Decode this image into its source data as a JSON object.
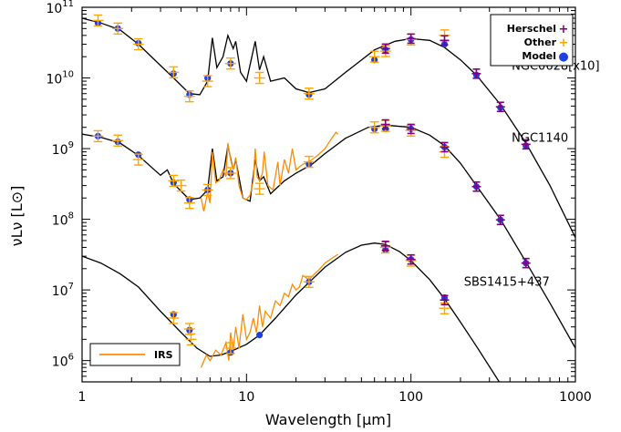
{
  "chart_data": {
    "type": "scatter",
    "title": "",
    "xlabel": "Wavelength [μm]",
    "ylabel": "νLν [L⊙]",
    "x_scale": "log",
    "y_scale": "log",
    "xlim": [
      1,
      1000
    ],
    "ylim": [
      500000,
      100000000000
    ],
    "x_ticks": [
      {
        "value": 1,
        "label": "1"
      },
      {
        "value": 10,
        "label": "10"
      },
      {
        "value": 100,
        "label": "100"
      },
      {
        "value": 1000,
        "label": "1000"
      }
    ],
    "y_ticks": [
      {
        "value": 1000000,
        "base": "10",
        "exp": "6"
      },
      {
        "value": 10000000,
        "base": "10",
        "exp": "7"
      },
      {
        "value": 100000000,
        "base": "10",
        "exp": "8"
      },
      {
        "value": 1000000000,
        "base": "10",
        "exp": "9"
      },
      {
        "value": 10000000000,
        "base": "10",
        "exp": "10"
      },
      {
        "value": 100000000000,
        "base": "10",
        "exp": "11"
      }
    ],
    "legend": {
      "placement": "top-right",
      "entries": [
        {
          "label": "Herschel",
          "marker": "+",
          "color": "#800080"
        },
        {
          "label": "Other",
          "marker": "+",
          "color": "#ffa500"
        },
        {
          "label": "Model",
          "marker": "●",
          "color": "#1f3fe0"
        }
      ]
    },
    "legend_irs": {
      "placement": "bottom-left",
      "label": "IRS",
      "color": "#ff8c00"
    },
    "galaxies": [
      {
        "name": "NGC0628[x10]",
        "label_x": 410,
        "label_y": 13000000000,
        "model_curve": [
          [
            1.0,
            70000000000
          ],
          [
            1.3,
            60000000000
          ],
          [
            1.7,
            48000000000
          ],
          [
            2.2,
            30000000000
          ],
          [
            3.0,
            15000000000
          ],
          [
            3.6,
            10000000000
          ],
          [
            4.5,
            6000000000
          ],
          [
            5.2,
            5800000000
          ],
          [
            5.8,
            9000000000
          ],
          [
            6.2,
            37000000000
          ],
          [
            6.6,
            14000000000
          ],
          [
            7.2,
            20000000000
          ],
          [
            7.7,
            40000000000
          ],
          [
            8.3,
            26000000000
          ],
          [
            8.6,
            33000000000
          ],
          [
            9.2,
            12000000000
          ],
          [
            10.0,
            9000000000
          ],
          [
            11.3,
            33000000000
          ],
          [
            12.0,
            13000000000
          ],
          [
            12.7,
            20000000000
          ],
          [
            14.0,
            9000000000
          ],
          [
            17.0,
            10000000000
          ],
          [
            20.0,
            7000000000
          ],
          [
            24.0,
            6200000000
          ],
          [
            30.0,
            7000000000
          ],
          [
            40.0,
            12000000000
          ],
          [
            60.0,
            25000000000
          ],
          [
            80.0,
            33000000000
          ],
          [
            100.0,
            36000000000
          ],
          [
            130.0,
            34000000000
          ],
          [
            160.0,
            27000000000
          ],
          [
            200.0,
            18000000000
          ],
          [
            250.0,
            11000000000
          ],
          [
            350.0,
            4200000000
          ],
          [
            500.0,
            1200000000
          ],
          [
            700.0,
            300000000
          ],
          [
            1000.0,
            55000000
          ]
        ],
        "model_points": [
          [
            1.25,
            60000000000
          ],
          [
            1.65,
            50000000000
          ],
          [
            2.2,
            31000000000
          ],
          [
            3.6,
            11500000000
          ],
          [
            4.5,
            5800000000
          ],
          [
            5.8,
            10000000000
          ],
          [
            8.0,
            16000000000
          ],
          [
            24.0,
            5800000000
          ],
          [
            60.0,
            18000000000
          ],
          [
            70.0,
            25000000000
          ],
          [
            100.0,
            35000000000
          ],
          [
            160.0,
            30000000000
          ],
          [
            250.0,
            11000000000
          ],
          [
            350.0,
            3800000000
          ],
          [
            500.0,
            1100000000
          ]
        ],
        "other_points": [
          [
            1.25,
            65000000000
          ],
          [
            1.65,
            50000000000
          ],
          [
            2.2,
            30000000000
          ],
          [
            3.6,
            12000000000
          ],
          [
            4.5,
            5500000000
          ],
          [
            5.8,
            9000000000
          ],
          [
            8.0,
            16000000000
          ],
          [
            12.0,
            10000000000
          ],
          [
            24.0,
            6000000000
          ],
          [
            60.0,
            20000000000
          ],
          [
            70.0,
            24000000000
          ],
          [
            100.0,
            35000000000
          ],
          [
            160.0,
            40000000000
          ]
        ],
        "herschel_points": [
          [
            70.0,
            26000000000
          ],
          [
            100.0,
            36000000000
          ],
          [
            160.0,
            34000000000
          ],
          [
            250.0,
            11500000000
          ],
          [
            350.0,
            3900000000
          ],
          [
            500.0,
            1150000000
          ]
        ]
      },
      {
        "name": "NGC1140",
        "label_x": 410,
        "label_y": 1250000000,
        "model_curve": [
          [
            1.0,
            1600000000
          ],
          [
            1.3,
            1450000000
          ],
          [
            1.7,
            1200000000
          ],
          [
            2.2,
            800000000
          ],
          [
            3.0,
            420000000
          ],
          [
            3.3,
            500000000
          ],
          [
            3.6,
            320000000
          ],
          [
            4.5,
            190000000
          ],
          [
            5.2,
            200000000
          ],
          [
            5.8,
            260000000
          ],
          [
            6.2,
            1000000000
          ],
          [
            6.6,
            350000000
          ],
          [
            7.2,
            400000000
          ],
          [
            7.7,
            1100000000
          ],
          [
            8.3,
            500000000
          ],
          [
            8.6,
            700000000
          ],
          [
            9.5,
            200000000
          ],
          [
            10.5,
            180000000
          ],
          [
            11.3,
            700000000
          ],
          [
            12.0,
            350000000
          ],
          [
            12.7,
            400000000
          ],
          [
            14.0,
            230000000
          ],
          [
            17.0,
            350000000
          ],
          [
            20.0,
            450000000
          ],
          [
            25.0,
            600000000
          ],
          [
            30.0,
            850000000
          ],
          [
            40.0,
            1400000000
          ],
          [
            55.0,
            2000000000
          ],
          [
            70.0,
            2150000000
          ],
          [
            100.0,
            2000000000
          ],
          [
            130.0,
            1550000000
          ],
          [
            160.0,
            1100000000
          ],
          [
            200.0,
            620000000
          ],
          [
            250.0,
            300000000
          ],
          [
            350.0,
            100000000
          ],
          [
            500.0,
            25000000
          ],
          [
            700.0,
            6500000
          ],
          [
            1000.0,
            1500000
          ]
        ],
        "irs_curve": [
          [
            5.3,
            200000000
          ],
          [
            5.5,
            130000000
          ],
          [
            5.8,
            240000000
          ],
          [
            6.0,
            170000000
          ],
          [
            6.2,
            900000000
          ],
          [
            6.5,
            330000000
          ],
          [
            6.8,
            350000000
          ],
          [
            7.2,
            500000000
          ],
          [
            7.5,
            400000000
          ],
          [
            7.7,
            1200000000
          ],
          [
            8.0,
            700000000
          ],
          [
            8.3,
            500000000
          ],
          [
            8.6,
            750000000
          ],
          [
            9.0,
            300000000
          ],
          [
            9.5,
            200000000
          ],
          [
            10.0,
            190000000
          ],
          [
            10.5,
            220000000
          ],
          [
            11.0,
            350000000
          ],
          [
            11.3,
            1000000000
          ],
          [
            11.6,
            400000000
          ],
          [
            12.0,
            350000000
          ],
          [
            12.5,
            450000000
          ],
          [
            12.8,
            900000000
          ],
          [
            13.5,
            300000000
          ],
          [
            14.5,
            260000000
          ],
          [
            15.5,
            650000000
          ],
          [
            16.0,
            300000000
          ],
          [
            17.0,
            700000000
          ],
          [
            18.0,
            450000000
          ],
          [
            19.0,
            1000000000
          ],
          [
            20.0,
            500000000
          ],
          [
            22.0,
            600000000
          ],
          [
            24.0,
            650000000
          ],
          [
            27.0,
            800000000
          ],
          [
            30.0,
            1000000000
          ],
          [
            33.0,
            1400000000
          ],
          [
            35.0,
            1700000000
          ],
          [
            36.0,
            1600000000
          ]
        ],
        "model_points": [
          [
            1.25,
            1500000000
          ],
          [
            1.65,
            1250000000
          ],
          [
            2.2,
            820000000
          ],
          [
            3.6,
            330000000
          ],
          [
            4.5,
            190000000
          ],
          [
            5.8,
            260000000
          ],
          [
            8.0,
            450000000
          ],
          [
            24.0,
            600000000
          ],
          [
            60.0,
            1900000000
          ],
          [
            70.0,
            1900000000
          ],
          [
            100.0,
            1900000000
          ],
          [
            160.0,
            1050000000
          ],
          [
            250.0,
            290000000
          ],
          [
            350.0,
            98000000
          ],
          [
            500.0,
            24000000
          ]
        ],
        "other_points": [
          [
            1.25,
            1500000000
          ],
          [
            1.65,
            1300000000
          ],
          [
            2.2,
            700000000
          ],
          [
            3.6,
            350000000
          ],
          [
            4.0,
            300000000
          ],
          [
            4.5,
            170000000
          ],
          [
            5.8,
            260000000
          ],
          [
            8.0,
            450000000
          ],
          [
            12.0,
            270000000
          ],
          [
            24.0,
            650000000
          ],
          [
            60.0,
            2000000000
          ],
          [
            70.0,
            2100000000
          ],
          [
            100.0,
            1800000000
          ],
          [
            160.0,
            900000000
          ]
        ],
        "herschel_points": [
          [
            70.0,
            2200000000
          ],
          [
            100.0,
            1900000000
          ],
          [
            160.0,
            1050000000
          ],
          [
            250.0,
            290000000
          ],
          [
            350.0,
            98000000
          ],
          [
            500.0,
            24000000
          ]
        ]
      },
      {
        "name": "SBS1415+437",
        "label_x": 210,
        "label_y": 11500000,
        "model_curve": [
          [
            1.0,
            30000000
          ],
          [
            1.3,
            24000000
          ],
          [
            1.7,
            17000000
          ],
          [
            2.2,
            11000000
          ],
          [
            3.0,
            5000000
          ],
          [
            4.0,
            2500000
          ],
          [
            5.0,
            1500000
          ],
          [
            6.0,
            1150000
          ],
          [
            7.0,
            1200000
          ],
          [
            8.0,
            1350000
          ],
          [
            10.0,
            1700000
          ],
          [
            12.0,
            2300000
          ],
          [
            15.0,
            4000000
          ],
          [
            20.0,
            8500000
          ],
          [
            25.0,
            14000000
          ],
          [
            30.0,
            21000000
          ],
          [
            40.0,
            34000000
          ],
          [
            50.0,
            43000000
          ],
          [
            60.0,
            46000000
          ],
          [
            70.0,
            44000000
          ],
          [
            85.0,
            35000000
          ],
          [
            100.0,
            26000000
          ],
          [
            130.0,
            14000000
          ],
          [
            160.0,
            7500000
          ],
          [
            200.0,
            3500000
          ],
          [
            250.0,
            1600000
          ],
          [
            350.0,
            470000
          ]
        ],
        "irs_curve": [
          [
            5.3,
            800000
          ],
          [
            5.7,
            1200000
          ],
          [
            6.0,
            1000000
          ],
          [
            6.5,
            1400000
          ],
          [
            7.0,
            1200000
          ],
          [
            7.5,
            1800000
          ],
          [
            7.8,
            1000000
          ],
          [
            8.0,
            2500000
          ],
          [
            8.3,
            1400000
          ],
          [
            8.6,
            3000000
          ],
          [
            9.0,
            1500000
          ],
          [
            9.5,
            4500000
          ],
          [
            10.0,
            2000000
          ],
          [
            10.5,
            2500000
          ],
          [
            11.0,
            4000000
          ],
          [
            11.5,
            2500000
          ],
          [
            12.0,
            6000000
          ],
          [
            12.5,
            3000000
          ],
          [
            13.0,
            5000000
          ],
          [
            14.0,
            4000000
          ],
          [
            15.0,
            7000000
          ],
          [
            16.0,
            6000000
          ],
          [
            17.0,
            9000000
          ],
          [
            18.0,
            8000000
          ],
          [
            19.0,
            12000000
          ],
          [
            20.0,
            10000000
          ],
          [
            21.0,
            11000000
          ],
          [
            22.0,
            16000000
          ],
          [
            24.0,
            14000000
          ],
          [
            26.0,
            17000000
          ],
          [
            28.0,
            20000000
          ],
          [
            30.0,
            24000000
          ],
          [
            33.0,
            28000000
          ],
          [
            36.0,
            32000000
          ]
        ],
        "model_points": [
          [
            3.6,
            4500000
          ],
          [
            4.5,
            2700000
          ],
          [
            8.0,
            1300000
          ],
          [
            12.0,
            2300000
          ],
          [
            24.0,
            13000000
          ],
          [
            70.0,
            37000000
          ],
          [
            100.0,
            27000000
          ],
          [
            160.0,
            7800000
          ]
        ],
        "other_points": [
          [
            3.6,
            4000000
          ],
          [
            4.5,
            2800000
          ],
          [
            4.6,
            2000000
          ],
          [
            8.0,
            1500000
          ],
          [
            24.0,
            13000000
          ],
          [
            70.0,
            40000000
          ],
          [
            100.0,
            26000000
          ],
          [
            160.0,
            5500000
          ]
        ],
        "herschel_points": [
          [
            70.0,
            42000000
          ],
          [
            100.0,
            27000000
          ],
          [
            160.0,
            7200000
          ]
        ]
      }
    ]
  }
}
